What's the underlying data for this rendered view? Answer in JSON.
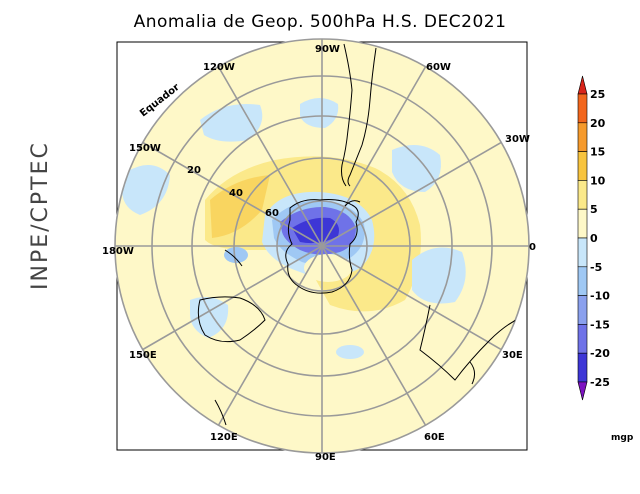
{
  "title": "Anomalia de Geop. 500hPa H.S. DEC2021",
  "side_label": "INPE/CPTEC",
  "map": {
    "equator_label": "Equador",
    "longitude_labels": {
      "lon_90w": "90W",
      "lon_60w": "60W",
      "lon_30w": "30W",
      "lon_0": "0",
      "lon_30e": "30E",
      "lon_60e": "60E",
      "lon_90e": "90E",
      "lon_120e": "120E",
      "lon_150e": "150E",
      "lon_180w": "180W",
      "lon_150w": "150W",
      "lon_120w": "120W"
    },
    "latitude_labels": {
      "lat_20": "20",
      "lat_40": "40",
      "lat_60": "60"
    }
  },
  "colorbar": {
    "unit": "mgp",
    "levels": [
      "25",
      "20",
      "15",
      "10",
      "5",
      "0",
      "-5",
      "-10",
      "-15",
      "-20",
      "-25"
    ],
    "colors": [
      "#d8241a",
      "#f2661d",
      "#f69a2c",
      "#f8c43e",
      "#fbe98a",
      "#fef8c8",
      "#c8e6fa",
      "#9fc8f4",
      "#8aa0ee",
      "#6f72e8",
      "#3d36d6",
      "#7d12c0"
    ]
  }
}
